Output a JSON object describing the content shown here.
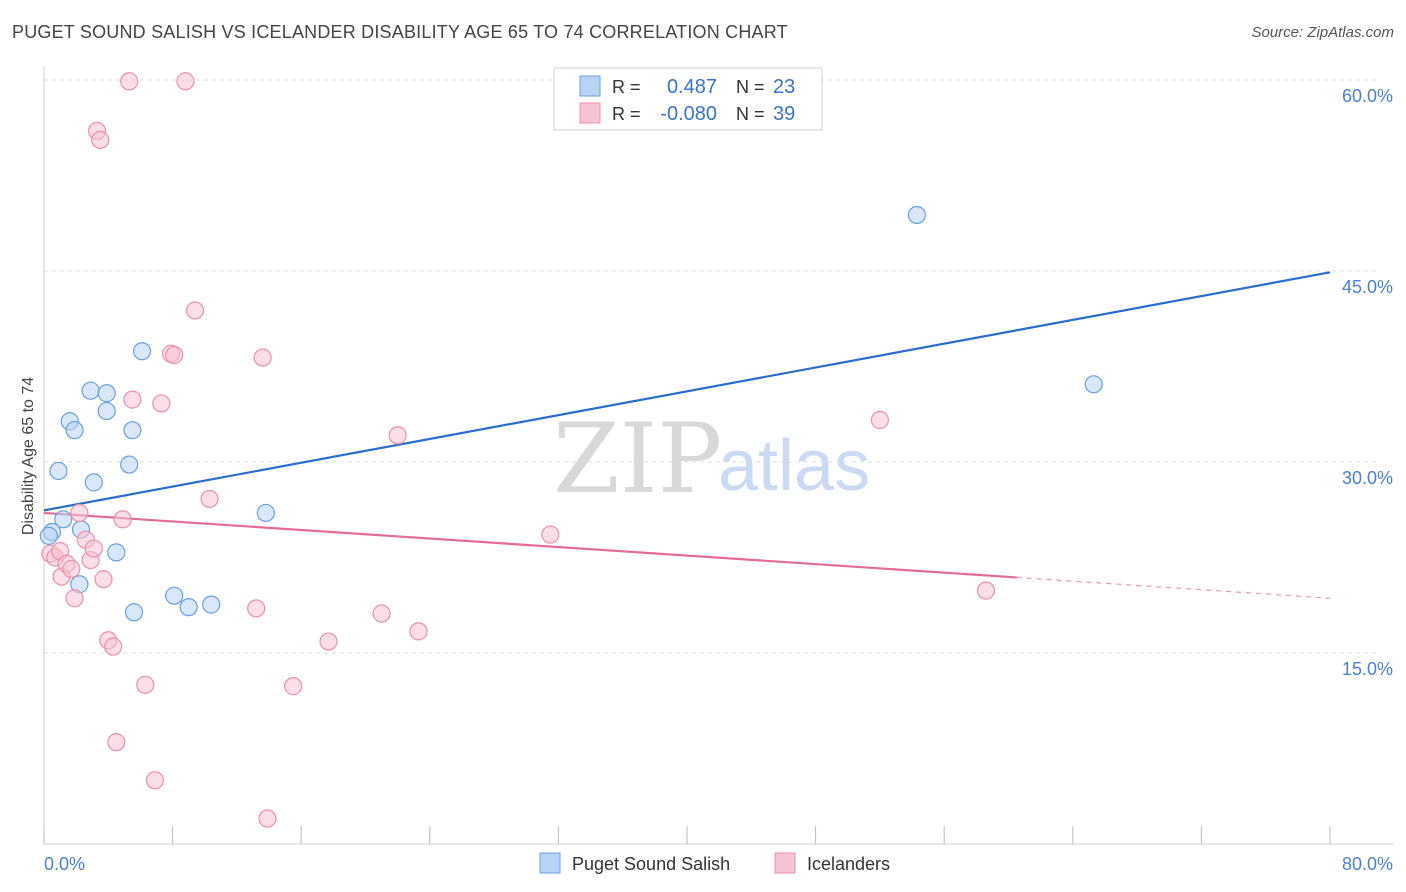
{
  "title": "PUGET SOUND SALISH VS ICELANDER DISABILITY AGE 65 TO 74 CORRELATION CHART",
  "source": "Source: ZipAtlas.com",
  "watermark": {
    "part1": "ZIP",
    "part2": "atlas"
  },
  "colors": {
    "blue_fill": "#b8d3f5",
    "blue_stroke": "#6a9fe0",
    "blue_line": "#2a6ccf",
    "pink_fill": "#f7c3d3",
    "pink_stroke": "#e890ab",
    "pink_line": "#e36b96",
    "grid": "#dddddd",
    "axis_label": "#4a7fd4"
  },
  "stats_box": {
    "r_label": "R =",
    "n_label": "N =",
    "blue": {
      "r": "0.487",
      "n": "23"
    },
    "pink": {
      "r": "-0.080",
      "n": "39"
    }
  },
  "chart_data": {
    "type": "scatter",
    "title": "PUGET SOUND SALISH VS ICELANDER DISABILITY AGE 65 TO 74 CORRELATION CHART",
    "xlabel": "",
    "ylabel": "Disability Age 65 to 74",
    "xlim": [
      0,
      80
    ],
    "ylim": [
      0,
      60
    ],
    "x_tick_labels": [
      "0.0%",
      "80.0%"
    ],
    "y_ticks": [
      15,
      30,
      45,
      60
    ],
    "y_tick_labels": [
      "15.0%",
      "30.0%",
      "45.0%",
      "60.0%"
    ],
    "grid": true,
    "legend": [
      "Puget Sound Salish",
      "Icelanders"
    ],
    "series": [
      {
        "name": "Puget Sound Salish",
        "color": "blue",
        "r": 0.487,
        "n": 23,
        "trend": {
          "x": [
            0,
            80
          ],
          "y": [
            26.2,
            44.9
          ],
          "solid_until": 80
        },
        "points": [
          [
            0.5,
            24.5
          ],
          [
            1.2,
            25.5
          ],
          [
            0.9,
            29.3
          ],
          [
            1.6,
            33.2
          ],
          [
            1.9,
            32.5
          ],
          [
            2.3,
            24.7
          ],
          [
            2.2,
            20.4
          ],
          [
            2.9,
            35.6
          ],
          [
            3.1,
            28.4
          ],
          [
            3.9,
            35.4
          ],
          [
            3.9,
            34.0
          ],
          [
            4.5,
            22.9
          ],
          [
            5.3,
            29.8
          ],
          [
            5.5,
            32.5
          ],
          [
            5.6,
            18.2
          ],
          [
            6.1,
            38.7
          ],
          [
            8.1,
            19.5
          ],
          [
            9.0,
            18.6
          ],
          [
            10.4,
            18.8
          ],
          [
            13.8,
            26.0
          ],
          [
            54.3,
            49.4
          ],
          [
            65.3,
            36.1
          ],
          [
            0.3,
            24.2
          ]
        ]
      },
      {
        "name": "Icelanders",
        "color": "pink",
        "r": -0.08,
        "n": 39,
        "trend": {
          "x": [
            0,
            80
          ],
          "y": [
            26.0,
            19.3
          ],
          "solid_until": 60.5
        },
        "points": [
          [
            0.4,
            22.8
          ],
          [
            0.7,
            22.5
          ],
          [
            1.0,
            23.0
          ],
          [
            1.1,
            21.0
          ],
          [
            1.4,
            22.0
          ],
          [
            1.7,
            21.6
          ],
          [
            1.9,
            19.3
          ],
          [
            2.2,
            26.0
          ],
          [
            2.6,
            23.9
          ],
          [
            2.9,
            22.3
          ],
          [
            3.1,
            23.2
          ],
          [
            3.3,
            56.0
          ],
          [
            3.5,
            55.3
          ],
          [
            3.7,
            20.8
          ],
          [
            4.0,
            16.0
          ],
          [
            4.3,
            15.5
          ],
          [
            4.5,
            8.0
          ],
          [
            4.9,
            25.5
          ],
          [
            5.3,
            59.9
          ],
          [
            5.5,
            34.9
          ],
          [
            6.3,
            12.5
          ],
          [
            6.9,
            5.0
          ],
          [
            7.3,
            34.6
          ],
          [
            7.9,
            38.5
          ],
          [
            8.1,
            38.4
          ],
          [
            8.8,
            59.9
          ],
          [
            9.4,
            41.9
          ],
          [
            10.3,
            27.1
          ],
          [
            13.2,
            18.5
          ],
          [
            13.6,
            38.2
          ],
          [
            13.9,
            2.0
          ],
          [
            15.5,
            12.4
          ],
          [
            17.7,
            15.9
          ],
          [
            21.0,
            18.1
          ],
          [
            22.0,
            32.1
          ],
          [
            23.3,
            16.7
          ],
          [
            31.5,
            24.3
          ],
          [
            52.0,
            33.3
          ],
          [
            58.6,
            19.9
          ]
        ]
      }
    ]
  }
}
